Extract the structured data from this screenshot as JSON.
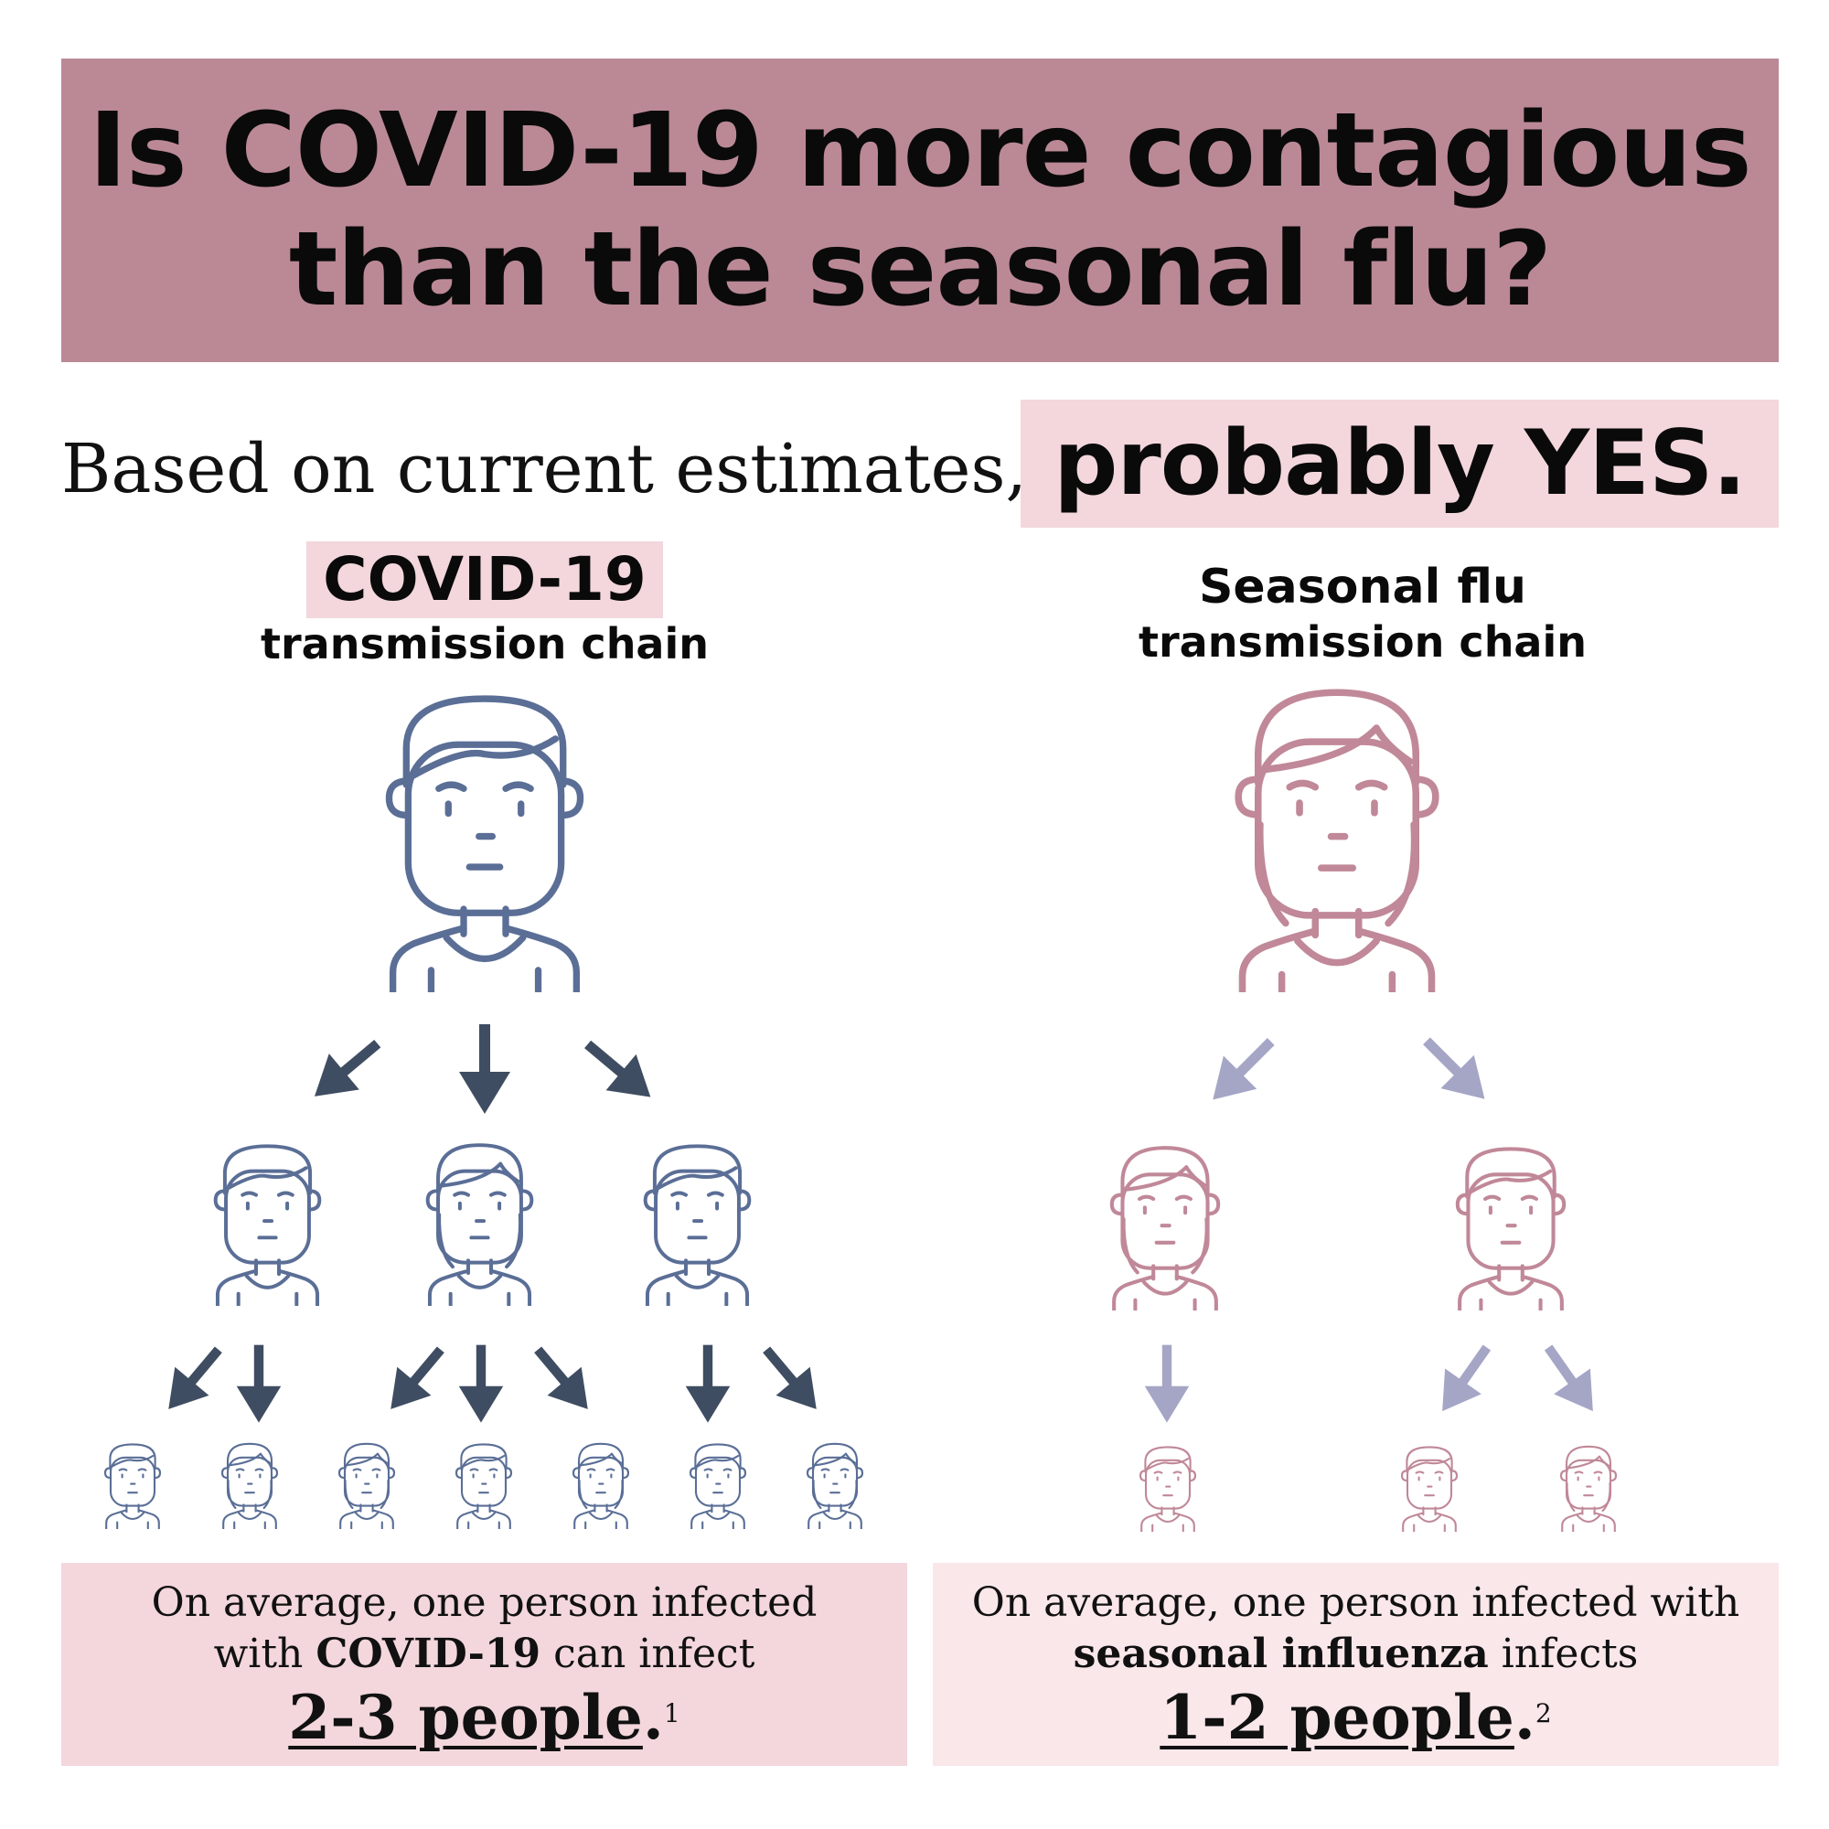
{
  "header": {
    "title_line1": "Is COVID-19 more contagious",
    "title_line2": "than the seasonal flu?"
  },
  "intro": {
    "text": "Based on current estimates,",
    "answer": "probably YES."
  },
  "covid": {
    "title": "COVID-19",
    "subtitle": "transmission chain",
    "summary_line1": "On average, one person infected",
    "summary_with": "with ",
    "summary_bold": "COVID-19",
    "summary_after": " can infect",
    "count": "2-3 people",
    "dot": ".",
    "footnote": "1"
  },
  "flu": {
    "title": "Seasonal flu",
    "subtitle": "transmission chain",
    "summary_line1": "On average, one person infected with",
    "summary_bold": "seasonal influenza",
    "summary_after": " infects",
    "count": "1-2 people",
    "dot": ".",
    "footnote": "2"
  },
  "colors": {
    "banner": "#bb8996",
    "highlight": "#f3d7dc",
    "covid_person": "#5a6e96",
    "covid_arrow": "#3f4d62",
    "flu_person": "#c08898",
    "flu_arrow": "#a5a6c6"
  },
  "icons": {
    "person": "person-outline-icon",
    "arrow": "arrow-icon"
  }
}
